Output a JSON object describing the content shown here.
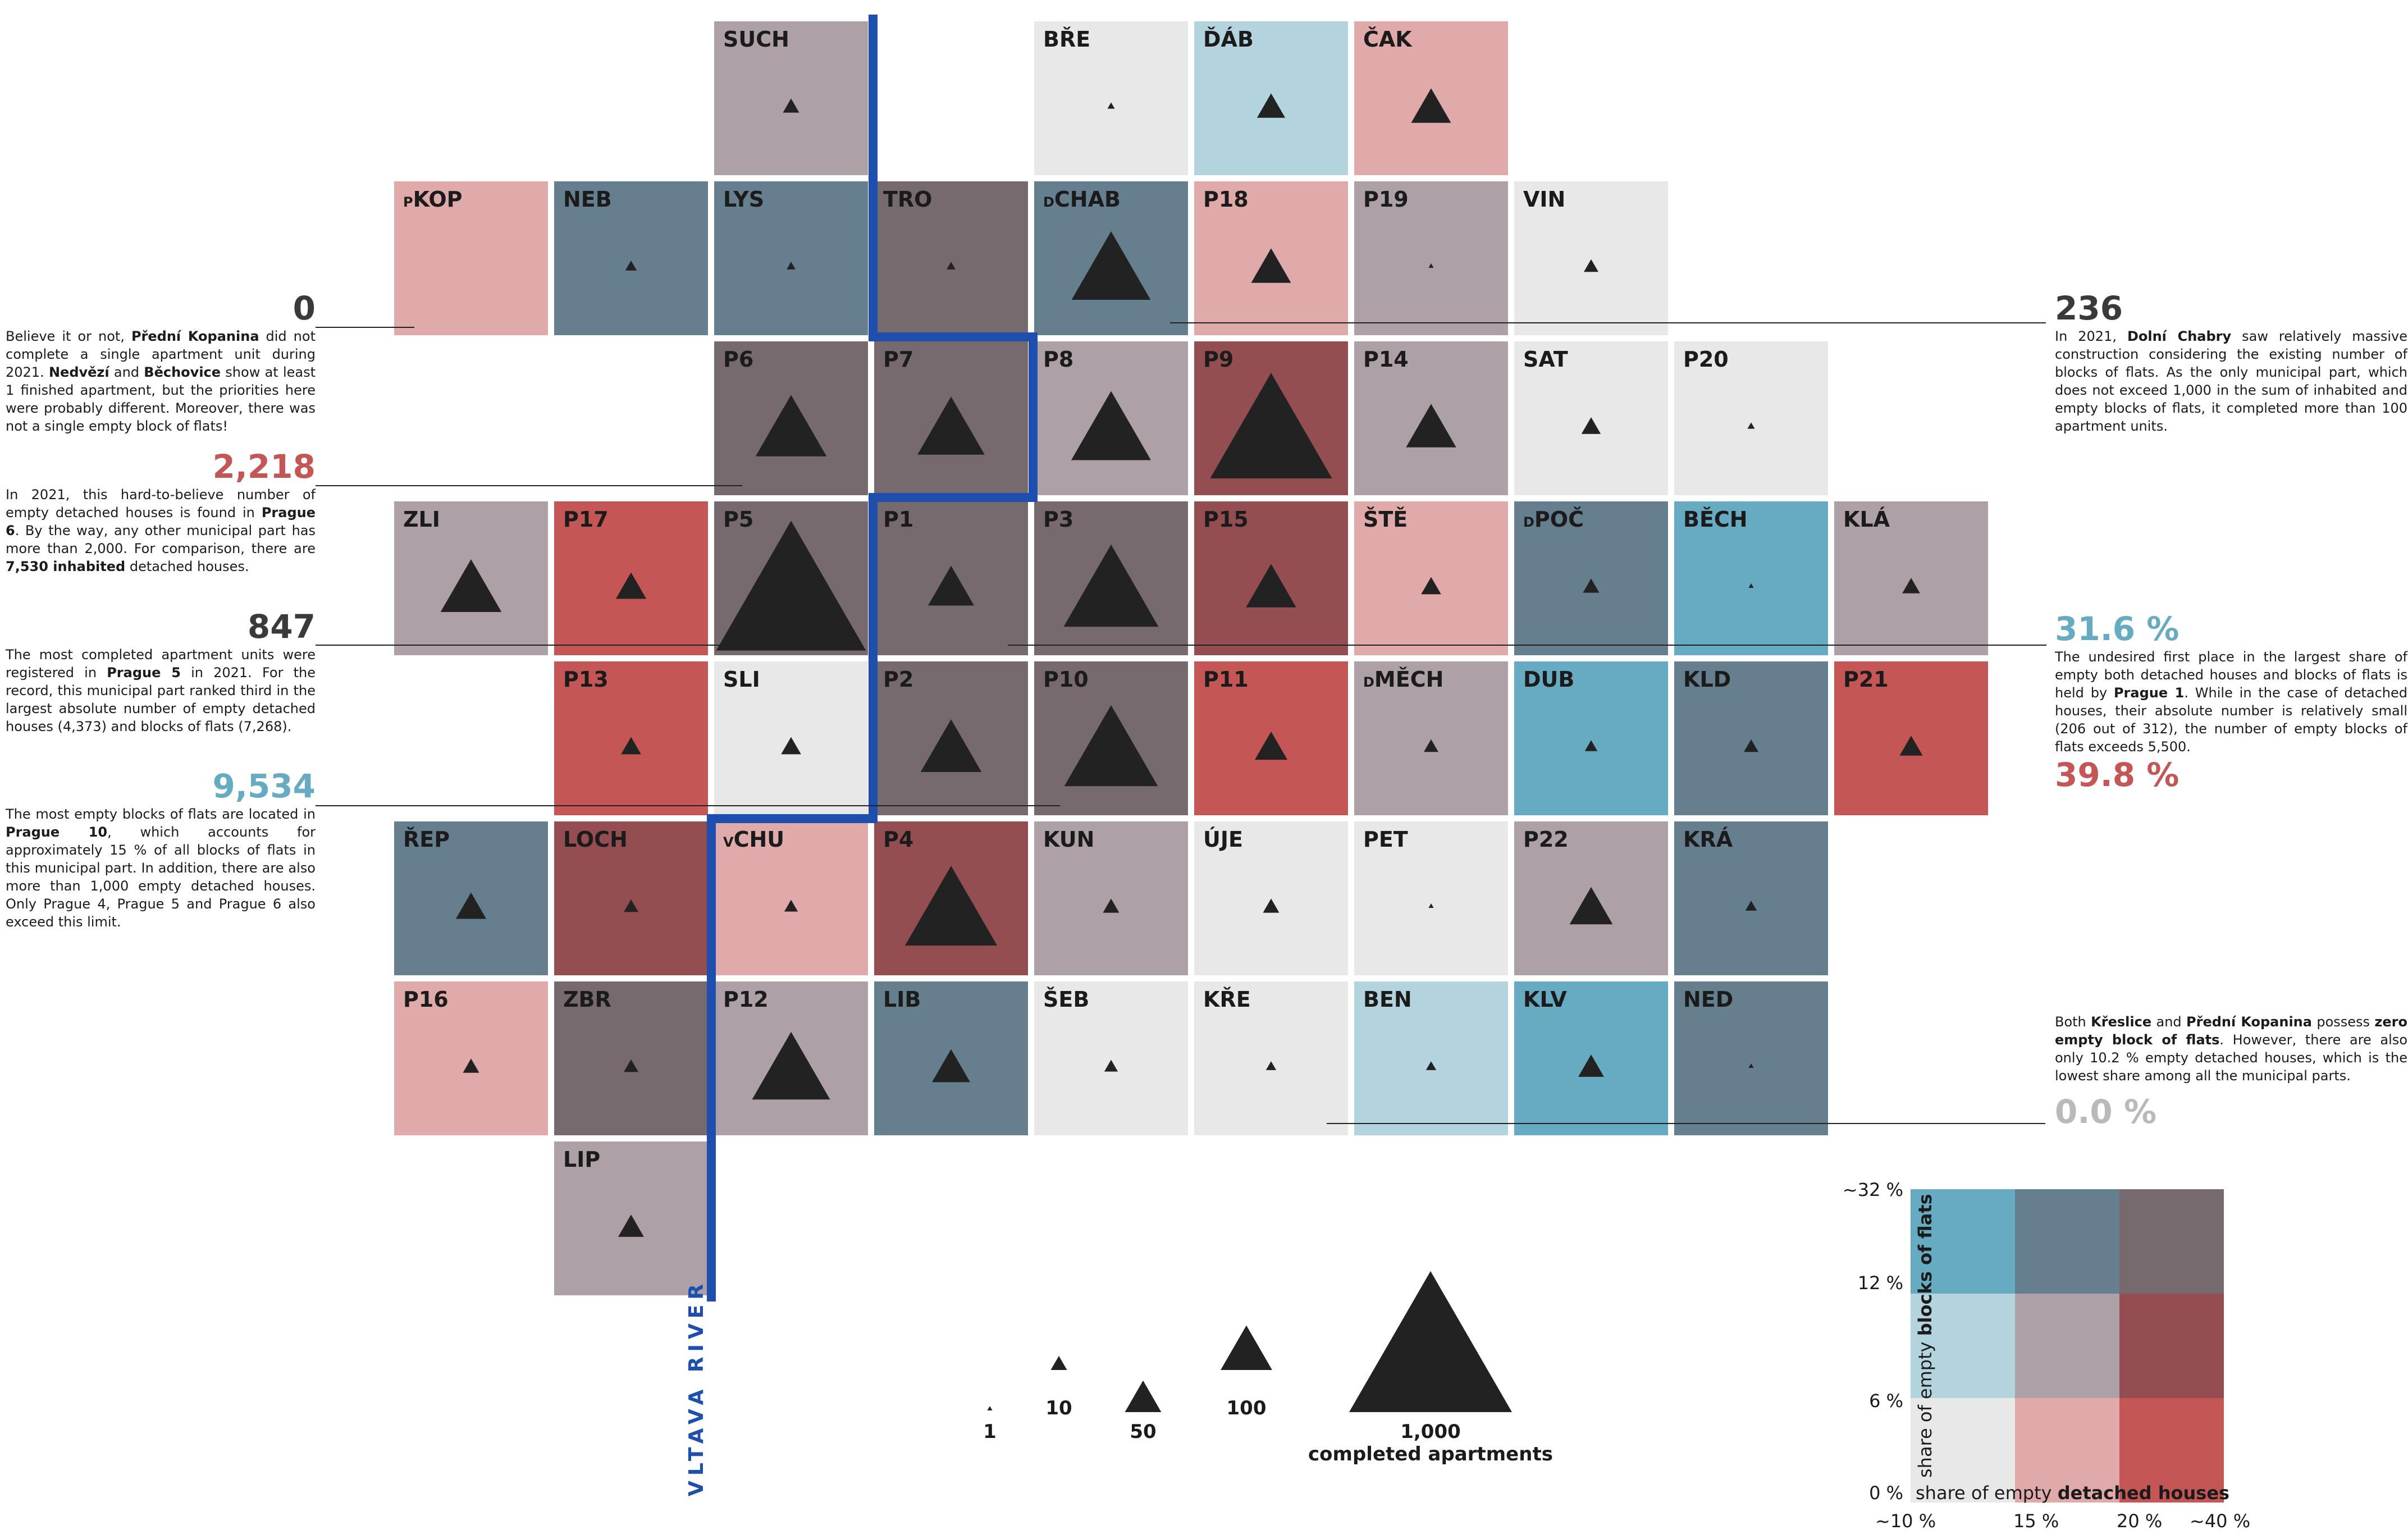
{
  "colors": {
    "light_grey": "#e8e8e8",
    "light_pink": "#e1aaaa",
    "red": "#c45656",
    "light_blue": "#b3d4df",
    "mauve": "#ada0a6",
    "dark_red": "#944e52",
    "mid_blue": "#67abc2",
    "slate_blue": "#657f8e",
    "dark_mauve": "#766a6e",
    "river": "#1f4fae",
    "triangle": "#222222"
  },
  "tiles": [
    {
      "code": "SUCH",
      "row": 0,
      "col": 2,
      "color": "#ada0a6",
      "apartments": 10
    },
    {
      "code": "BŘE",
      "row": 0,
      "col": 4,
      "color": "#e8e8e8",
      "apartments": 2
    },
    {
      "code": "ĎÁB",
      "row": 0,
      "col": 5,
      "color": "#b3d4df",
      "apartments": 30
    },
    {
      "code": "ČAK",
      "row": 0,
      "col": 6,
      "color": "#e1aaaa",
      "apartments": 60
    },
    {
      "code": "KOP",
      "prefix": "P",
      "row": 1,
      "col": 0,
      "color": "#e1aaaa",
      "apartments": 0
    },
    {
      "code": "NEB",
      "row": 1,
      "col": 1,
      "color": "#657f8e",
      "apartments": 5
    },
    {
      "code": "LYS",
      "row": 1,
      "col": 2,
      "color": "#657f8e",
      "apartments": 3
    },
    {
      "code": "TRO",
      "row": 1,
      "col": 3,
      "color": "#766a6e",
      "apartments": 3
    },
    {
      "code": "CHAB",
      "prefix": "D",
      "row": 1,
      "col": 4,
      "color": "#657f8e",
      "apartments": 236
    },
    {
      "code": "P18",
      "row": 1,
      "col": 5,
      "color": "#e1aaaa",
      "apartments": 60
    },
    {
      "code": "P19",
      "row": 1,
      "col": 6,
      "color": "#ada0a6",
      "apartments": 1
    },
    {
      "code": "VIN",
      "row": 1,
      "col": 7,
      "color": "#e8e8e8",
      "apartments": 8
    },
    {
      "code": "P6",
      "row": 2,
      "col": 2,
      "color": "#766a6e",
      "apartments": 190
    },
    {
      "code": "P7",
      "row": 2,
      "col": 3,
      "color": "#766a6e",
      "apartments": 170
    },
    {
      "code": "P8",
      "row": 2,
      "col": 4,
      "color": "#ada0a6",
      "apartments": 240
    },
    {
      "code": "P9",
      "row": 2,
      "col": 5,
      "color": "#944e52",
      "apartments": 560
    },
    {
      "code": "P14",
      "row": 2,
      "col": 6,
      "color": "#ada0a6",
      "apartments": 95
    },
    {
      "code": "SAT",
      "row": 2,
      "col": 7,
      "color": "#e8e8e8",
      "apartments": 14
    },
    {
      "code": "P20",
      "row": 2,
      "col": 8,
      "color": "#e8e8e8",
      "apartments": 2
    },
    {
      "code": "ZLI",
      "row": 3,
      "col": 0,
      "color": "#ada0a6",
      "apartments": 140
    },
    {
      "code": "P17",
      "row": 3,
      "col": 1,
      "color": "#c45656",
      "apartments": 35
    },
    {
      "code": "P5",
      "row": 3,
      "col": 2,
      "color": "#766a6e",
      "apartments": 847
    },
    {
      "code": "P1",
      "row": 3,
      "col": 3,
      "color": "#766a6e",
      "apartments": 80
    },
    {
      "code": "P3",
      "row": 3,
      "col": 4,
      "color": "#766a6e",
      "apartments": 340
    },
    {
      "code": "P15",
      "row": 3,
      "col": 5,
      "color": "#944e52",
      "apartments": 95
    },
    {
      "code": "ŠTĚ",
      "row": 3,
      "col": 6,
      "color": "#e1aaaa",
      "apartments": 15
    },
    {
      "code": "POČ",
      "prefix": "D",
      "row": 3,
      "col": 7,
      "color": "#657f8e",
      "apartments": 10
    },
    {
      "code": "BĚCH",
      "row": 3,
      "col": 8,
      "color": "#67abc2",
      "apartments": 1
    },
    {
      "code": "KLÁ",
      "row": 3,
      "col": 9,
      "color": "#ada0a6",
      "apartments": 12
    },
    {
      "code": "P13",
      "row": 4,
      "col": 1,
      "color": "#c45656",
      "apartments": 15
    },
    {
      "code": "SLI",
      "row": 4,
      "col": 2,
      "color": "#e8e8e8",
      "apartments": 15
    },
    {
      "code": "P2",
      "row": 4,
      "col": 3,
      "color": "#766a6e",
      "apartments": 140
    },
    {
      "code": "P10",
      "row": 4,
      "col": 4,
      "color": "#766a6e",
      "apartments": 330
    },
    {
      "code": "P11",
      "row": 4,
      "col": 5,
      "color": "#c45656",
      "apartments": 40
    },
    {
      "code": "MĚCH",
      "prefix": "D",
      "row": 4,
      "col": 6,
      "color": "#ada0a6",
      "apartments": 8
    },
    {
      "code": "DUB",
      "row": 4,
      "col": 7,
      "color": "#67abc2",
      "apartments": 6
    },
    {
      "code": "KLD",
      "row": 4,
      "col": 8,
      "color": "#657f8e",
      "apartments": 8
    },
    {
      "code": "P21",
      "row": 4,
      "col": 9,
      "color": "#c45656",
      "apartments": 20
    },
    {
      "code": "ŘEP",
      "row": 5,
      "col": 0,
      "color": "#657f8e",
      "apartments": 35
    },
    {
      "code": "LOCH",
      "row": 5,
      "col": 1,
      "color": "#944e52",
      "apartments": 8
    },
    {
      "code": "CHU",
      "prefix": "V",
      "row": 5,
      "col": 2,
      "color": "#e1aaaa",
      "apartments": 7
    },
    {
      "code": "P4",
      "row": 5,
      "col": 3,
      "color": "#944e52",
      "apartments": 320
    },
    {
      "code": "KUN",
      "row": 5,
      "col": 4,
      "color": "#ada0a6",
      "apartments": 10
    },
    {
      "code": "ÚJE",
      "row": 5,
      "col": 5,
      "color": "#e8e8e8",
      "apartments": 10
    },
    {
      "code": "PET",
      "row": 5,
      "col": 6,
      "color": "#e8e8e8",
      "apartments": 1
    },
    {
      "code": "P22",
      "row": 5,
      "col": 7,
      "color": "#ada0a6",
      "apartments": 70
    },
    {
      "code": "KRÁ",
      "row": 5,
      "col": 8,
      "color": "#657f8e",
      "apartments": 5
    },
    {
      "code": "P16",
      "row": 6,
      "col": 0,
      "color": "#e1aaaa",
      "apartments": 10
    },
    {
      "code": "ZBR",
      "row": 6,
      "col": 1,
      "color": "#766a6e",
      "apartments": 8
    },
    {
      "code": "P12",
      "row": 6,
      "col": 2,
      "color": "#ada0a6",
      "apartments": 230
    },
    {
      "code": "LIB",
      "row": 6,
      "col": 3,
      "color": "#657f8e",
      "apartments": 55
    },
    {
      "code": "ŠEB",
      "row": 6,
      "col": 4,
      "color": "#e8e8e8",
      "apartments": 7
    },
    {
      "code": "KŘE",
      "row": 6,
      "col": 5,
      "color": "#e8e8e8",
      "apartments": 4
    },
    {
      "code": "BEN",
      "row": 6,
      "col": 6,
      "color": "#b3d4df",
      "apartments": 4
    },
    {
      "code": "KLV",
      "row": 6,
      "col": 7,
      "color": "#67abc2",
      "apartments": 25
    },
    {
      "code": "NED",
      "row": 6,
      "col": 8,
      "color": "#657f8e",
      "apartments": 1
    },
    {
      "code": "LIP",
      "row": 7,
      "col": 1,
      "color": "#ada0a6",
      "apartments": 25
    }
  ],
  "river_label": "VLTAVA RIVER",
  "callouts": {
    "kopanina": {
      "value": "0",
      "value_color": "#3a3a3a",
      "html": "Believe it or not, <b>Přední Kopanina</b> did not complete a single apartment unit during 2021. <b>Nedvězí</b> and <b>Běchovice</b> show at least 1 finished apartment, but the priorities here were probably different. Moreover, there was not a single empty block of flats!"
    },
    "prague6": {
      "value": "2,218",
      "value_color": "#c45656",
      "html": "In 2021, this hard-to-believe number of empty detached houses is found in <b>Prague 6</b>. By the way, any other municipal part has more than 2,000. For comparison, there are <b>7,530 inhabited</b> detached houses."
    },
    "prague5": {
      "value": "847",
      "value_color": "#3a3a3a",
      "html": "The most completed apartment units were registered in <b>Prague 5</b> in 2021. For the record, this municipal part ranked third in the largest absolute number of empty detached houses (4,373) and blocks of flats (7,268)."
    },
    "prague10": {
      "value": "9,534",
      "value_color": "#67abc2",
      "html": "The most empty blocks of flats are located in <b>Prague 10</b>, which accounts for approximately 15 % of all blocks of flats in this municipal part. In addition, there are also more than 1,000 empty detached houses. Only Prague 4, Prague 5 and Prague 6 also exceed this limit."
    },
    "chabry": {
      "value": "236",
      "value_color": "#3a3a3a",
      "html": "In 2021, <b>Dolní Chabry</b> saw relatively massive construction considering the existing number of blocks of flats. As the only municipal part, which does not exceed 1,000 in the sum of inhabited and empty blocks of flats, it completed more than 100 apartment units."
    },
    "prague1": {
      "value": "31.6 %",
      "value_color": "#67abc2",
      "value2": "39.8 %",
      "value2_color": "#c45656",
      "html": "The undesired first place in the largest share of empty both detached houses and blocks of flats is held by <b>Prague 1</b>. While in the case of detached houses, their absolute number is relatively small (206 out of 312), the number of empty blocks of flats exceeds 5,500."
    },
    "kreslice": {
      "value": "0.0 %",
      "value_color": "#b9b9b9",
      "html": "Both <b>Křeslice</b> and <b>Přední Kopanina</b> possess <b>zero empty block of flats</b>. However, there are also only 10.2 % empty detached houses, which is the lowest share among all the municipal parts."
    }
  },
  "size_legend": {
    "items": [
      {
        "value": 1,
        "label": "1"
      },
      {
        "value": 10,
        "label": "10"
      },
      {
        "value": 50,
        "label": "50"
      },
      {
        "value": 100,
        "label": "100"
      },
      {
        "value": 1000,
        "label": "1,000"
      }
    ],
    "caption": "completed apartments"
  },
  "color_legend": {
    "grid": [
      [
        "#67abc2",
        "#657f8e",
        "#766a6e"
      ],
      [
        "#b3d4df",
        "#ada0a6",
        "#944e52"
      ],
      [
        "#e8e8e8",
        "#e1aaaa",
        "#c45656"
      ]
    ],
    "y_ticks": [
      "~32 %",
      "12 %",
      "6 %",
      "0 %"
    ],
    "x_ticks": [
      "~10 %",
      "15 %",
      "20 %",
      "~40 %"
    ],
    "y_title_plain": "share of empty ",
    "y_title_bold": "blocks of flats",
    "x_title_plain": "share of empty ",
    "x_title_bold": "detached houses"
  }
}
